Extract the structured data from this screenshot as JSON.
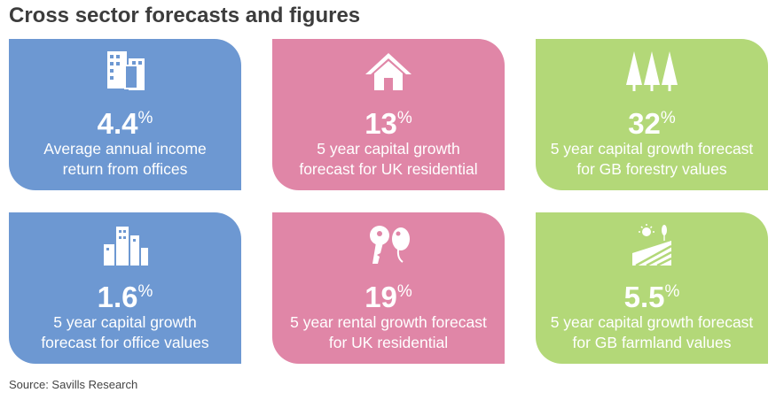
{
  "title": "Cross sector forecasts and figures",
  "cards": [
    {
      "value": "4.4",
      "unit": "%",
      "lines": [
        "Average annual income",
        "return from offices"
      ]
    },
    {
      "value": "13",
      "unit": "%",
      "lines": [
        "5 year capital growth",
        "forecast for UK residential"
      ]
    },
    {
      "value": "32",
      "unit": "%",
      "lines": [
        "5 year capital growth forecast",
        "for GB forestry values"
      ]
    },
    {
      "value": "1.6",
      "unit": "%",
      "lines": [
        "5 year capital growth",
        "forecast for office values"
      ]
    },
    {
      "value": "19",
      "unit": "%",
      "lines": [
        "5 year rental growth forecast",
        "for UK residential"
      ]
    },
    {
      "value": "5.5",
      "unit": "%",
      "lines": [
        "5 year capital growth forecast",
        "for GB farmland values"
      ]
    }
  ],
  "source": "Source: Savills Research"
}
